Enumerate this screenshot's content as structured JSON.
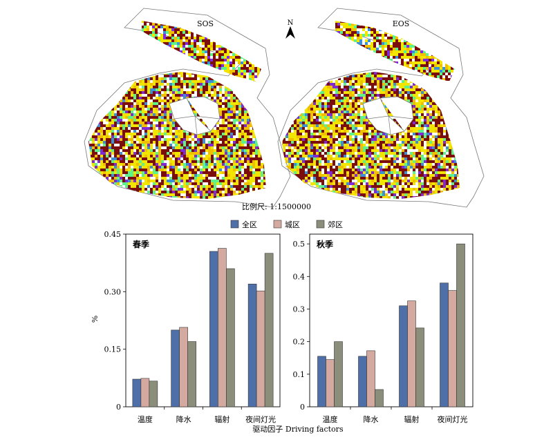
{
  "maps": {
    "left_label": "SOS",
    "right_label": "EOS",
    "north_label": "N",
    "scale_text": "比例尺: 1:1500000",
    "class_colors": [
      "#7b0d0d",
      "#f2e600",
      "#5df28a",
      "#3a8fd6",
      "#7f2ad6",
      "#f0c000"
    ]
  },
  "chart_data": [
    {
      "type": "bar",
      "panel_label": "春季",
      "categories": [
        "温度",
        "降水",
        "辐射",
        "夜间灯光"
      ],
      "series": [
        {
          "name": "全区",
          "color": "#4f6fa8",
          "values": [
            0.072,
            0.2,
            0.405,
            0.32
          ]
        },
        {
          "name": "城区",
          "color": "#d4aaa0",
          "values": [
            0.074,
            0.207,
            0.413,
            0.302
          ]
        },
        {
          "name": "郊区",
          "color": "#8b8e7a",
          "values": [
            0.067,
            0.17,
            0.36,
            0.4
          ]
        }
      ],
      "ylim": [
        0,
        0.45
      ],
      "yticks": [
        0,
        0.15,
        0.3,
        0.45
      ],
      "ytick_labels": [
        "0",
        "0.15",
        "0.30",
        "0.45"
      ],
      "ylabel": "%"
    },
    {
      "type": "bar",
      "panel_label": "秋季",
      "categories": [
        "温度",
        "降水",
        "辐射",
        "夜间灯光"
      ],
      "series": [
        {
          "name": "全区",
          "color": "#4f6fa8",
          "values": [
            0.155,
            0.155,
            0.31,
            0.38
          ]
        },
        {
          "name": "城区",
          "color": "#d4aaa0",
          "values": [
            0.145,
            0.172,
            0.325,
            0.357
          ]
        },
        {
          "name": "郊区",
          "color": "#8b8e7a",
          "values": [
            0.2,
            0.053,
            0.242,
            0.5
          ]
        }
      ],
      "ylim": [
        0,
        0.53
      ],
      "yticks": [
        0,
        0.1,
        0.2,
        0.3,
        0.4,
        0.5
      ],
      "ytick_labels": [
        "0",
        "0.1",
        "0.2",
        "0.3",
        "0.4",
        "0.5"
      ]
    }
  ],
  "legend": [
    {
      "name": "全区",
      "color": "#4f6fa8"
    },
    {
      "name": "城区",
      "color": "#d4aaa0"
    },
    {
      "name": "郊区",
      "color": "#8b8e7a"
    }
  ],
  "xlabel": "驱动因子 Driving factors"
}
